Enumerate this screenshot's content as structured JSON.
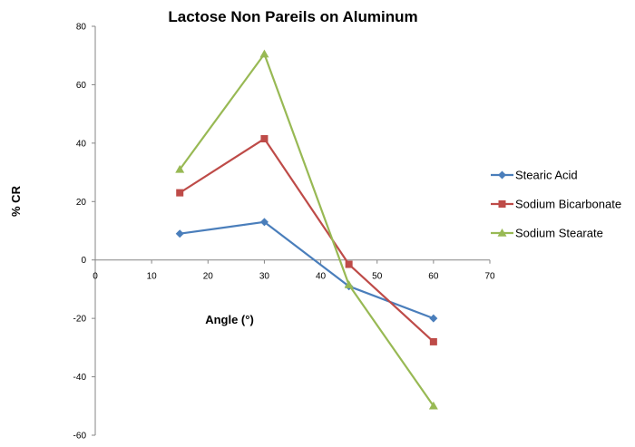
{
  "chart_data": {
    "type": "line",
    "title": "Lactose Non Pareils on Aluminum",
    "xlabel": "Angle (°)",
    "ylabel": "% CR",
    "xlim": [
      0,
      70
    ],
    "ylim": [
      -60,
      80
    ],
    "x_ticks": [
      0,
      10,
      20,
      30,
      40,
      50,
      60,
      70
    ],
    "y_ticks": [
      80,
      60,
      40,
      20,
      0,
      -20,
      -40,
      -60
    ],
    "grid": false,
    "legend_position": "right",
    "series": [
      {
        "name": "Stearic Acid",
        "color": "#4a7ebb",
        "marker": "diamond",
        "points": [
          [
            15,
            9
          ],
          [
            30,
            13
          ],
          [
            45,
            -9
          ],
          [
            60,
            -20
          ]
        ]
      },
      {
        "name": "Sodium Bicarbonate",
        "color": "#be4b48",
        "marker": "square",
        "points": [
          [
            15,
            23
          ],
          [
            30,
            41.5
          ],
          [
            45,
            -1.5
          ],
          [
            60,
            -28
          ]
        ]
      },
      {
        "name": "Sodium Stearate",
        "color": "#98b954",
        "marker": "triangle",
        "points": [
          [
            15,
            31
          ],
          [
            30,
            70.5
          ],
          [
            45,
            -8.5
          ],
          [
            60,
            -50
          ]
        ]
      }
    ]
  }
}
